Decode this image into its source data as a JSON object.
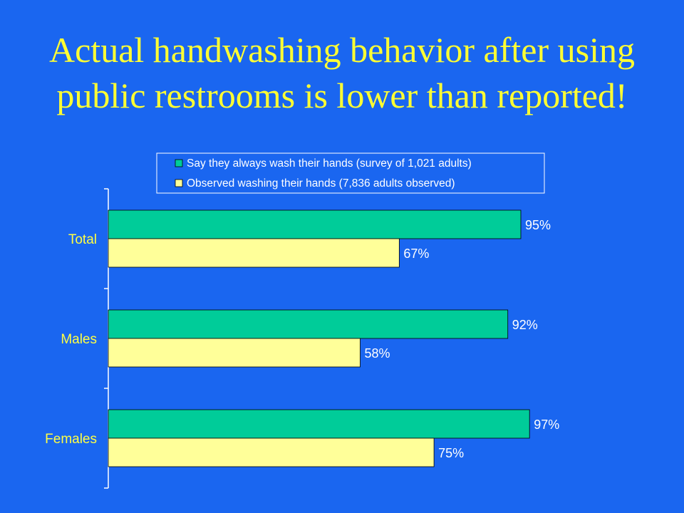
{
  "title": {
    "line1": "Actual handwashing behavior after using",
    "line2": "public restrooms is lower than reported!"
  },
  "colors": {
    "background": "#1a66f0",
    "title": "#ffff33",
    "category_label": "#ffff44",
    "value_label": "#ffffff",
    "axis": "#ffffff"
  },
  "chart_data": {
    "type": "bar",
    "orientation": "horizontal",
    "categories": [
      "Total",
      "Males",
      "Females"
    ],
    "series": [
      {
        "name": "Say they always wash their hands (survey of 1,021 adults)",
        "values": [
          95,
          92,
          97
        ],
        "labels": [
          "95%",
          "92%",
          "97%"
        ],
        "color": "#00cc99"
      },
      {
        "name": "Observed washing their hands (7,836 adults observed)",
        "values": [
          67,
          58,
          75
        ],
        "labels": [
          "67%",
          "58%",
          "75%"
        ],
        "color": "#ffff99"
      }
    ],
    "xlim": [
      0,
      100
    ],
    "grid": false,
    "legend_position": "top-right"
  }
}
